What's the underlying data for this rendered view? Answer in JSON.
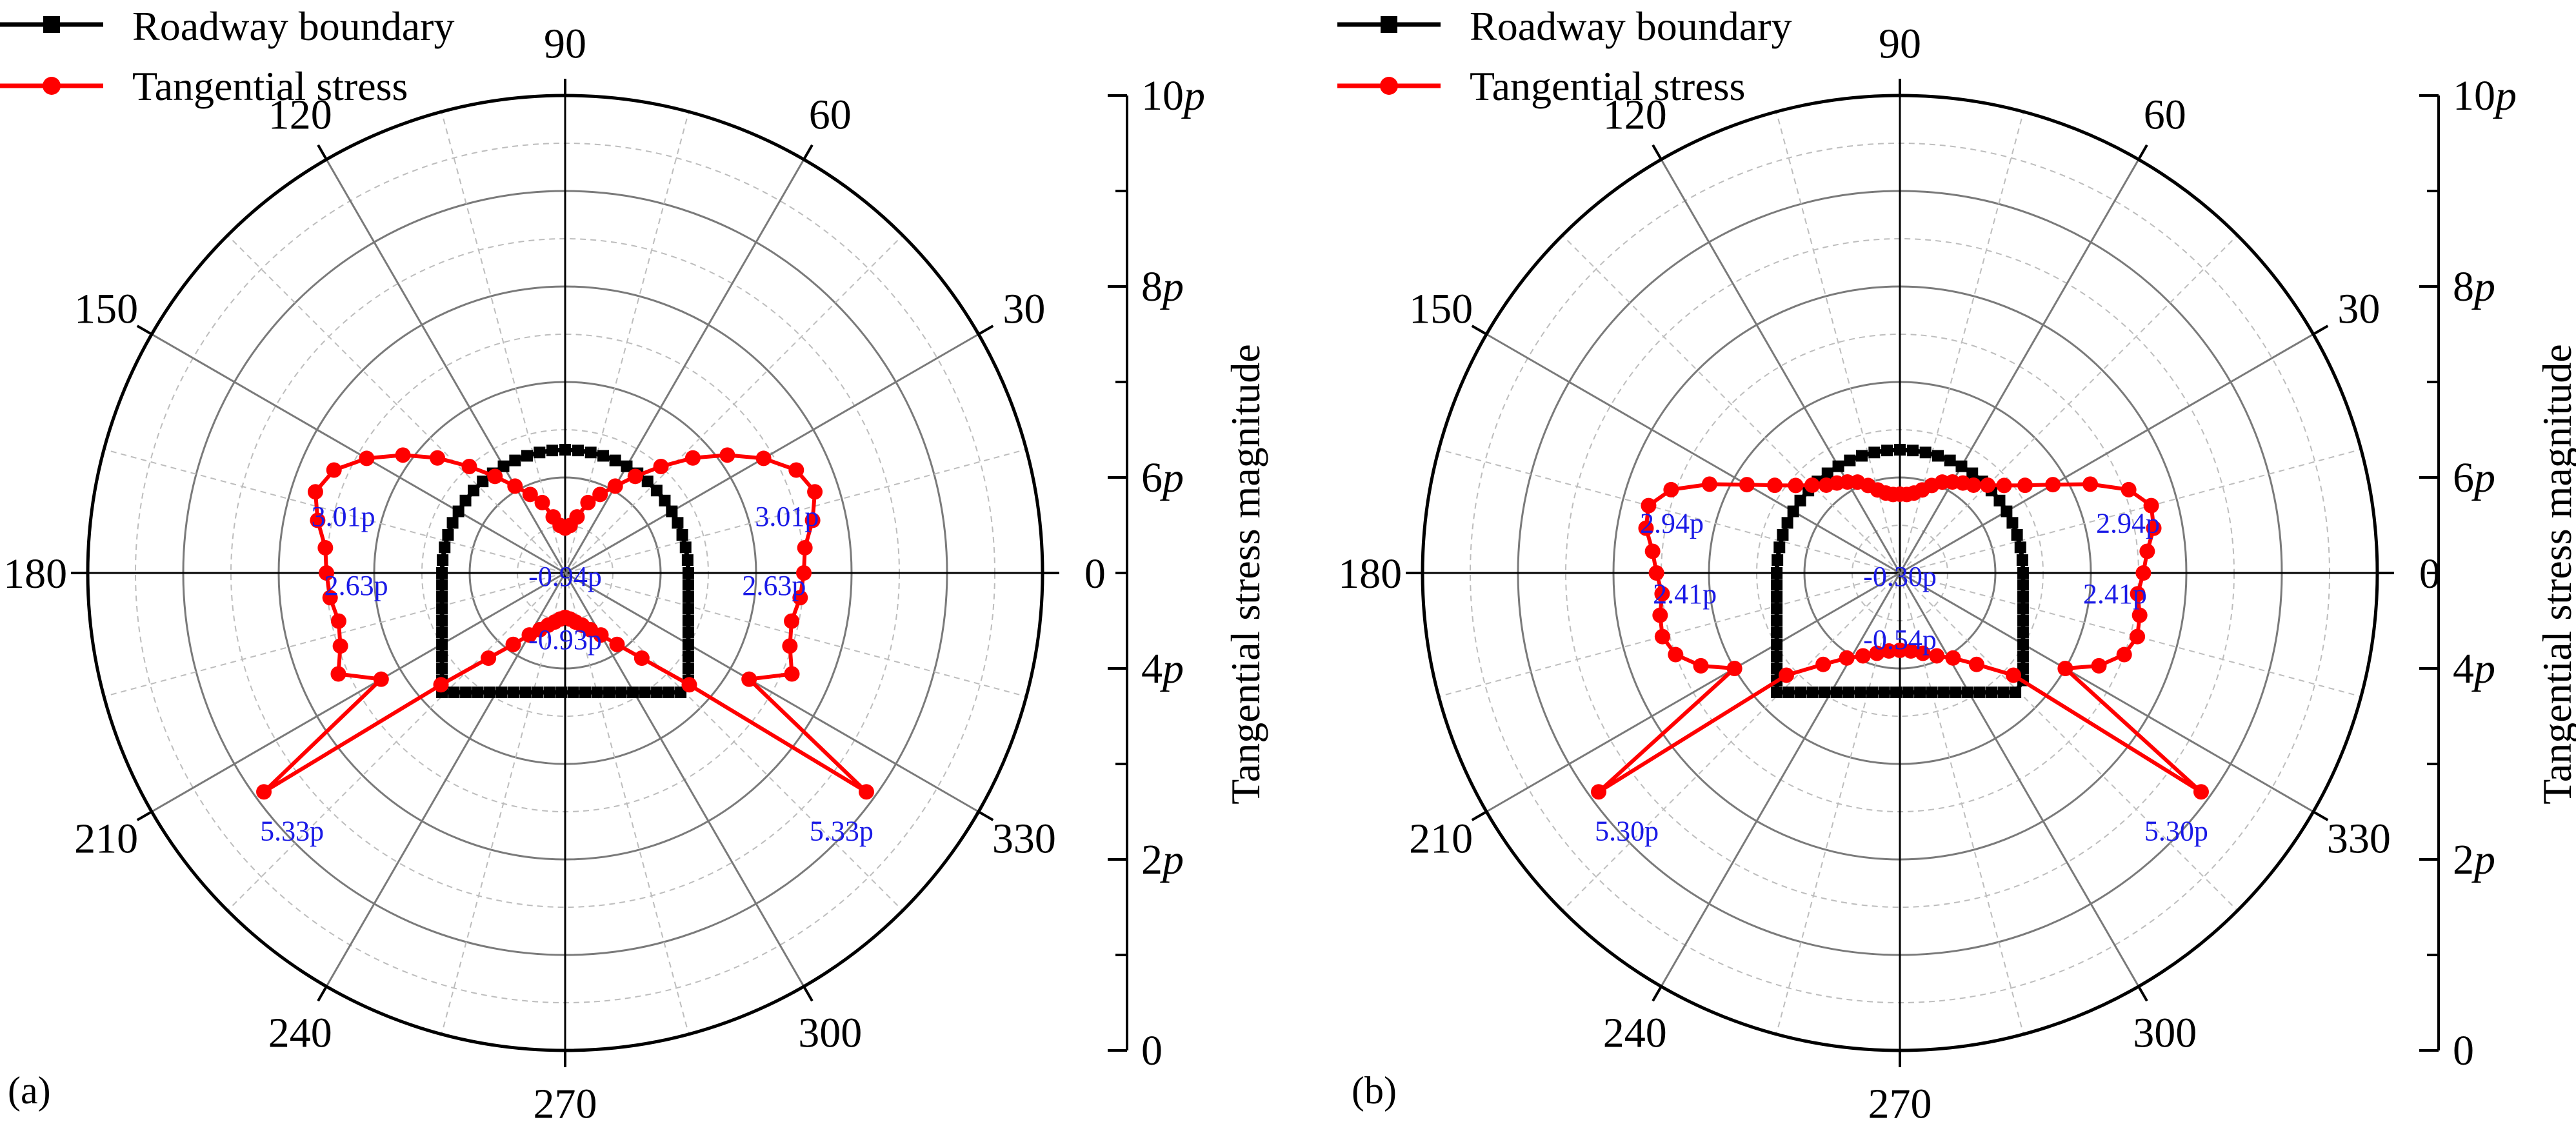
{
  "figure": {
    "panels": [
      {
        "panel_label": "(a)",
        "legend": [
          {
            "name": "Roadway boundary",
            "color": "#000000",
            "marker": "square"
          },
          {
            "name": "Tangential stress",
            "color": "#ff0000",
            "marker": "circle"
          }
        ],
        "angle_ticks": [
          "0",
          "30",
          "60",
          "90",
          "120",
          "150",
          "180",
          "210",
          "240",
          "270",
          "300",
          "330"
        ],
        "radial_ticks": [
          "0",
          "2",
          "4",
          "6",
          "8",
          "10"
        ],
        "radial_unit": "p",
        "axis_title": "Tangential stress magnitude",
        "annotations": [
          {
            "text": "3.01p",
            "theta": 168
          },
          {
            "text": "3.01p",
            "theta": 12
          },
          {
            "text": "2.63p",
            "theta": 186
          },
          {
            "text": "2.63p",
            "theta": 354
          },
          {
            "text": "-0.94p",
            "theta": 90
          },
          {
            "text": "-0.93p",
            "theta": 270
          },
          {
            "text": "5.33p",
            "theta": 216
          },
          {
            "text": "5.33p",
            "theta": 324
          }
        ]
      },
      {
        "panel_label": "(b)",
        "legend": [
          {
            "name": "Roadway boundary",
            "color": "#000000",
            "marker": "square"
          },
          {
            "name": "Tangential stress",
            "color": "#ff0000",
            "marker": "circle"
          }
        ],
        "angle_ticks": [
          "0",
          "30",
          "60",
          "90",
          "120",
          "150",
          "180",
          "210",
          "240",
          "270",
          "300",
          "330"
        ],
        "radial_ticks": [
          "0",
          "2",
          "4",
          "6",
          "8",
          "10"
        ],
        "radial_unit": "p",
        "axis_title": "Tangential stress magnitude",
        "annotations": [
          {
            "text": "2.94p",
            "theta": 170
          },
          {
            "text": "2.94p",
            "theta": 10
          },
          {
            "text": "2.41p",
            "theta": 188
          },
          {
            "text": "2.41p",
            "theta": 352
          },
          {
            "text": "-0.30p",
            "theta": 90
          },
          {
            "text": "-0.54p",
            "theta": 270
          },
          {
            "text": "5.30p",
            "theta": 216
          },
          {
            "text": "5.30p",
            "theta": 324
          }
        ]
      }
    ]
  },
  "chart_data": [
    {
      "type": "scatter",
      "subtype": "polar",
      "title": "(a)",
      "ylabel": "Tangential stress magnitude",
      "rlim": [
        0,
        10
      ],
      "theta_ticks": [
        0,
        30,
        60,
        90,
        120,
        150,
        180,
        210,
        240,
        270,
        300,
        330
      ],
      "r_ticks": [
        0,
        2,
        4,
        6,
        8,
        10
      ],
      "series": [
        {
          "name": "Roadway boundary",
          "shape": "arch_roadway",
          "arch_radius": 2.58,
          "floor_depth": 2.5
        },
        {
          "name": "Tangential stress",
          "points": [
            {
              "theta": 0,
              "r": 5.0
            },
            {
              "theta": 6,
              "r": 5.05
            },
            {
              "theta": 12,
              "r": 5.3
            },
            {
              "theta": 18,
              "r": 5.5
            },
            {
              "theta": 24,
              "r": 5.3
            },
            {
              "theta": 30,
              "r": 4.8
            },
            {
              "theta": 36,
              "r": 4.2
            },
            {
              "theta": 42,
              "r": 3.6
            },
            {
              "theta": 48,
              "r": 3.0
            },
            {
              "theta": 54,
              "r": 2.5
            },
            {
              "theta": 60,
              "r": 2.1
            },
            {
              "theta": 66,
              "r": 1.8
            },
            {
              "theta": 72,
              "r": 1.55
            },
            {
              "theta": 78,
              "r": 1.2
            },
            {
              "theta": 84,
              "r": 1.0
            },
            {
              "theta": 90,
              "r": 0.94
            },
            {
              "theta": 96,
              "r": 1.0
            },
            {
              "theta": 102,
              "r": 1.2
            },
            {
              "theta": 108,
              "r": 1.55
            },
            {
              "theta": 114,
              "r": 1.8
            },
            {
              "theta": 120,
              "r": 2.1
            },
            {
              "theta": 126,
              "r": 2.5
            },
            {
              "theta": 132,
              "r": 3.0
            },
            {
              "theta": 138,
              "r": 3.6
            },
            {
              "theta": 144,
              "r": 4.2
            },
            {
              "theta": 150,
              "r": 4.8
            },
            {
              "theta": 156,
              "r": 5.3
            },
            {
              "theta": 162,
              "r": 5.5
            },
            {
              "theta": 168,
              "r": 5.3
            },
            {
              "theta": 174,
              "r": 5.05
            },
            {
              "theta": 180,
              "r": 5.0
            },
            {
              "theta": 186,
              "r": 4.95
            },
            {
              "theta": 192,
              "r": 4.85
            },
            {
              "theta": 198,
              "r": 4.95
            },
            {
              "theta": 204,
              "r": 5.2
            },
            {
              "theta": 210,
              "r": 4.45
            },
            {
              "theta": 216,
              "r": 7.8
            },
            {
              "theta": 222,
              "r": 3.5
            },
            {
              "theta": 228,
              "r": 2.4
            },
            {
              "theta": 234,
              "r": 1.85
            },
            {
              "theta": 240,
              "r": 1.5
            },
            {
              "theta": 246,
              "r": 1.3
            },
            {
              "theta": 252,
              "r": 1.15
            },
            {
              "theta": 258,
              "r": 1.05
            },
            {
              "theta": 264,
              "r": 0.97
            },
            {
              "theta": 270,
              "r": 0.93
            },
            {
              "theta": 276,
              "r": 0.97
            },
            {
              "theta": 282,
              "r": 1.05
            },
            {
              "theta": 288,
              "r": 1.15
            },
            {
              "theta": 294,
              "r": 1.3
            },
            {
              "theta": 300,
              "r": 1.5
            },
            {
              "theta": 306,
              "r": 1.85
            },
            {
              "theta": 312,
              "r": 2.4
            },
            {
              "theta": 318,
              "r": 3.5
            },
            {
              "theta": 324,
              "r": 7.8
            },
            {
              "theta": 330,
              "r": 4.45
            },
            {
              "theta": 336,
              "r": 5.2
            },
            {
              "theta": 342,
              "r": 4.95
            },
            {
              "theta": 348,
              "r": 4.85
            },
            {
              "theta": 354,
              "r": 4.95
            }
          ]
        }
      ]
    },
    {
      "type": "scatter",
      "subtype": "polar",
      "title": "(b)",
      "ylabel": "Tangential stress magnitude",
      "rlim": [
        0,
        10
      ],
      "theta_ticks": [
        0,
        30,
        60,
        90,
        120,
        150,
        180,
        210,
        240,
        270,
        300,
        330
      ],
      "r_ticks": [
        0,
        2,
        4,
        6,
        8,
        10
      ],
      "series": [
        {
          "name": "Roadway boundary",
          "shape": "arch_roadway",
          "arch_radius": 2.58,
          "floor_depth": 2.5
        },
        {
          "name": "Tangential stress",
          "points": [
            {
              "theta": 0,
              "r": 5.1
            },
            {
              "theta": 5,
              "r": 5.2
            },
            {
              "theta": 10,
              "r": 5.4
            },
            {
              "theta": 15,
              "r": 5.45
            },
            {
              "theta": 20,
              "r": 5.1
            },
            {
              "theta": 25,
              "r": 4.4
            },
            {
              "theta": 30,
              "r": 3.7
            },
            {
              "theta": 35,
              "r": 3.2
            },
            {
              "theta": 40,
              "r": 2.85
            },
            {
              "theta": 45,
              "r": 2.6
            },
            {
              "theta": 50,
              "r": 2.4
            },
            {
              "theta": 55,
              "r": 2.3
            },
            {
              "theta": 60,
              "r": 2.2
            },
            {
              "theta": 65,
              "r": 2.1
            },
            {
              "theta": 70,
              "r": 1.95
            },
            {
              "theta": 75,
              "r": 1.8
            },
            {
              "theta": 80,
              "r": 1.7
            },
            {
              "theta": 85,
              "r": 1.65
            },
            {
              "theta": 90,
              "r": 1.65
            },
            {
              "theta": 95,
              "r": 1.65
            },
            {
              "theta": 100,
              "r": 1.7
            },
            {
              "theta": 105,
              "r": 1.8
            },
            {
              "theta": 110,
              "r": 1.95
            },
            {
              "theta": 115,
              "r": 2.1
            },
            {
              "theta": 120,
              "r": 2.2
            },
            {
              "theta": 125,
              "r": 2.3
            },
            {
              "theta": 130,
              "r": 2.4
            },
            {
              "theta": 135,
              "r": 2.6
            },
            {
              "theta": 140,
              "r": 2.85
            },
            {
              "theta": 145,
              "r": 3.2
            },
            {
              "theta": 150,
              "r": 3.7
            },
            {
              "theta": 155,
              "r": 4.4
            },
            {
              "theta": 160,
              "r": 5.1
            },
            {
              "theta": 165,
              "r": 5.45
            },
            {
              "theta": 170,
              "r": 5.4
            },
            {
              "theta": 175,
              "r": 5.2
            },
            {
              "theta": 180,
              "r": 5.1
            },
            {
              "theta": 185,
              "r": 5.0
            },
            {
              "theta": 190,
              "r": 5.1
            },
            {
              "theta": 195,
              "r": 5.15
            },
            {
              "theta": 200,
              "r": 5.0
            },
            {
              "theta": 205,
              "r": 4.6
            },
            {
              "theta": 210,
              "r": 4.0
            },
            {
              "theta": 216,
              "r": 7.8
            },
            {
              "theta": 222,
              "r": 3.2
            },
            {
              "theta": 230,
              "r": 2.5
            },
            {
              "theta": 238,
              "r": 2.1
            },
            {
              "theta": 246,
              "r": 1.9
            },
            {
              "theta": 254,
              "r": 1.75
            },
            {
              "theta": 262,
              "r": 1.65
            },
            {
              "theta": 270,
              "r": 1.62
            },
            {
              "theta": 278,
              "r": 1.65
            },
            {
              "theta": 286,
              "r": 1.75
            },
            {
              "theta": 294,
              "r": 1.9
            },
            {
              "theta": 302,
              "r": 2.1
            },
            {
              "theta": 310,
              "r": 2.5
            },
            {
              "theta": 318,
              "r": 3.2
            },
            {
              "theta": 324,
              "r": 7.8
            },
            {
              "theta": 330,
              "r": 4.0
            },
            {
              "theta": 335,
              "r": 4.6
            },
            {
              "theta": 340,
              "r": 5.0
            },
            {
              "theta": 345,
              "r": 5.15
            },
            {
              "theta": 350,
              "r": 5.1
            },
            {
              "theta": 355,
              "r": 5.0
            }
          ]
        }
      ]
    }
  ]
}
